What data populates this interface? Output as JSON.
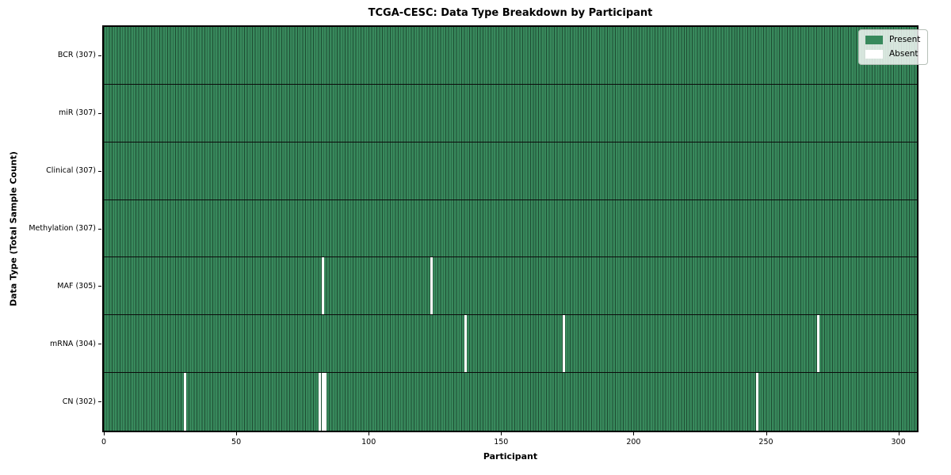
{
  "title": "TCGA-CESC: Data Type Breakdown by Participant",
  "xlabel": "Participant",
  "ylabel": "Data Type (Total Sample Count)",
  "legend": {
    "present_label": "Present",
    "absent_label": "Absent"
  },
  "colors": {
    "present": "#38895c",
    "absent": "#ffffff",
    "bar_edge": "#1e4d33",
    "row_separator": "#0b0b0b",
    "axes_border": "#000000"
  },
  "chart_data": {
    "type": "heatmap",
    "title": "TCGA-CESC: Data Type Breakdown by Participant",
    "xlabel": "Participant",
    "ylabel": "Data Type (Total Sample Count)",
    "n_participants": 307,
    "xlim": [
      0,
      307
    ],
    "x_ticks": [
      0,
      50,
      100,
      150,
      200,
      250,
      300
    ],
    "grid": false,
    "legend_entries": [
      "Present",
      "Absent"
    ],
    "legend_position": "upper right",
    "cell_values": "1 = present (green), 0 = absent (white)",
    "rows": [
      {
        "label": "BCR (307)",
        "data_type": "BCR",
        "present_count": 307,
        "absent_count": 0,
        "absent_participants": []
      },
      {
        "label": "miR (307)",
        "data_type": "miR",
        "present_count": 307,
        "absent_count": 0,
        "absent_participants": []
      },
      {
        "label": "Clinical (307)",
        "data_type": "Clinical",
        "present_count": 307,
        "absent_count": 0,
        "absent_participants": []
      },
      {
        "label": "Methylation (307)",
        "data_type": "Methylation",
        "present_count": 307,
        "absent_count": 0,
        "absent_participants": []
      },
      {
        "label": "MAF (305)",
        "data_type": "MAF",
        "present_count": 305,
        "absent_count": 2,
        "absent_participants": [
          82,
          123
        ]
      },
      {
        "label": "mRNA (304)",
        "data_type": "mRNA",
        "present_count": 304,
        "absent_count": 3,
        "absent_participants": [
          136,
          173,
          269
        ]
      },
      {
        "label": "CN (302)",
        "data_type": "CN",
        "present_count": 302,
        "absent_count": 5,
        "absent_participants": [
          30,
          81,
          82,
          83,
          246
        ]
      }
    ]
  }
}
